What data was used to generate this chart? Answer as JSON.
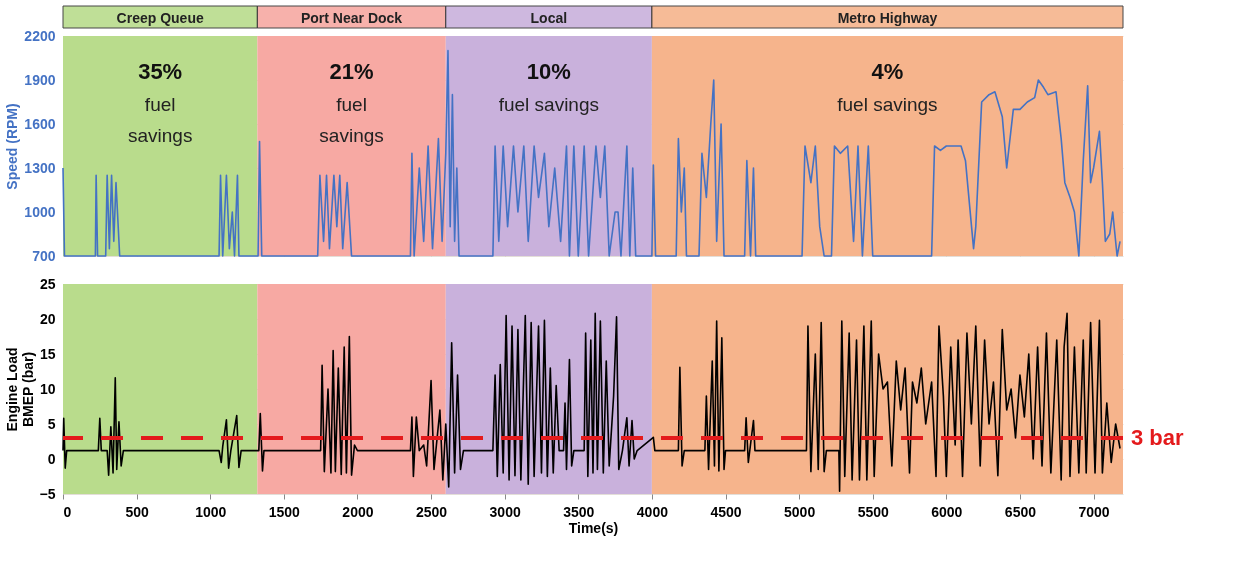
{
  "chart_data": [
    {
      "type": "line",
      "ylabel": "Speed (RPM)",
      "xlim": [
        0,
        7200
      ],
      "xticks": [
        0,
        500,
        1000,
        1500,
        2000,
        2500,
        3000,
        3500,
        4000,
        4500,
        5000,
        5500,
        6000,
        6500,
        7000
      ],
      "ylim": [
        700,
        2200
      ],
      "yticks": [
        700,
        1000,
        1300,
        1600,
        1900,
        2200
      ],
      "tick_labels": "y",
      "grid": true,
      "marker": "none",
      "line_style": "solid",
      "bands": [
        {
          "axis": "x",
          "from": 0,
          "to": 1320,
          "label": "Creep Queue",
          "color": "#b9dc8c"
        },
        {
          "axis": "x",
          "from": 1320,
          "to": 2600,
          "label": "Port Near Dock",
          "color": "#f7a9a3"
        },
        {
          "axis": "x",
          "from": 2600,
          "to": 4000,
          "label": "Local",
          "color": "#c9b1dc"
        },
        {
          "axis": "x",
          "from": 4000,
          "to": 7200,
          "label": "Metro Highway",
          "color": "#f6b48c"
        }
      ],
      "annotations": [
        "35%\nfuel\nsavings",
        "21%\nfuel\nsavings",
        "10%\nfuel savings",
        "4%\nfuel savings"
      ],
      "series": [
        {
          "color": "#4472c4",
          "x": [
            0,
            10,
            220,
            225,
            235,
            290,
            300,
            315,
            330,
            345,
            360,
            385,
            1060,
            1070,
            1085,
            1110,
            1130,
            1150,
            1165,
            1185,
            1195,
            1325,
            1335,
            1350,
            1730,
            1745,
            1770,
            1790,
            1810,
            1840,
            1860,
            1880,
            1900,
            1930,
            1960,
            2360,
            2370,
            2385,
            2420,
            2450,
            2480,
            2510,
            2550,
            2575,
            2600,
            2615,
            2630,
            2645,
            2660,
            2675,
            2690,
            2920,
            2935,
            2960,
            2990,
            3020,
            3060,
            3090,
            3130,
            3160,
            3200,
            3230,
            3270,
            3300,
            3340,
            3380,
            3420,
            3440,
            3470,
            3500,
            3540,
            3570,
            3620,
            3650,
            3680,
            3710,
            3750,
            3770,
            3790,
            3830,
            3850,
            3870,
            3890,
            4000,
            4010,
            4025,
            4165,
            4180,
            4200,
            4220,
            4235,
            4320,
            4340,
            4370,
            4400,
            4420,
            4440,
            4470,
            4490,
            4630,
            4645,
            4670,
            4690,
            4705,
            5020,
            5040,
            5080,
            5110,
            5140,
            5170,
            5220,
            5240,
            5280,
            5330,
            5370,
            5400,
            5430,
            5470,
            5500,
            5900,
            5920,
            5960,
            6000,
            6100,
            6130,
            6185,
            6200,
            6240,
            6290,
            6330,
            6380,
            6410,
            6455,
            6500,
            6550,
            6600,
            6625,
            6660,
            6690,
            6745,
            6780,
            6805,
            6840,
            6870,
            6900,
            6930,
            6960,
            6980,
            7000,
            7040,
            7060,
            7080,
            7110,
            7130,
            7160,
            7180
          ],
          "values": [
            1300,
            700,
            700,
            1250,
            700,
            700,
            1250,
            750,
            1250,
            800,
            1200,
            700,
            700,
            1250,
            700,
            1250,
            750,
            1000,
            700,
            1250,
            700,
            700,
            1480,
            700,
            700,
            1250,
            800,
            1250,
            750,
            1250,
            900,
            1250,
            750,
            1200,
            700,
            700,
            1400,
            700,
            1300,
            800,
            1450,
            750,
            1500,
            800,
            1400,
            2100,
            900,
            1800,
            800,
            1300,
            700,
            700,
            1450,
            800,
            1450,
            900,
            1450,
            1000,
            1450,
            800,
            1450,
            1100,
            1400,
            900,
            1300,
            800,
            1450,
            700,
            1450,
            700,
            1450,
            700,
            1450,
            1100,
            1450,
            700,
            1000,
            1000,
            700,
            1450,
            700,
            1300,
            700,
            700,
            1320,
            700,
            700,
            1500,
            1000,
            1300,
            700,
            700,
            1400,
            1100,
            1600,
            1900,
            800,
            1600,
            700,
            700,
            1350,
            700,
            1300,
            700,
            700,
            1450,
            1200,
            1450,
            900,
            700,
            700,
            1450,
            1400,
            1450,
            800,
            1450,
            700,
            1450,
            700,
            700,
            1450,
            1420,
            1450,
            1450,
            1350,
            750,
            900,
            1750,
            1800,
            1820,
            1650,
            1300,
            1700,
            1700,
            1750,
            1780,
            1900,
            1850,
            1800,
            1820,
            1500,
            1200,
            1100,
            1000,
            700,
            1350,
            1860,
            1200,
            1300,
            1550,
            1200,
            800,
            850,
            1000,
            700,
            800
          ]
        }
      ]
    },
    {
      "type": "line",
      "xlabel": "Time(s)",
      "ylabel": "Engine Load\nBMEP (bar)",
      "xlim": [
        0,
        7200
      ],
      "xticks": [
        0,
        500,
        1000,
        1500,
        2000,
        2500,
        3000,
        3500,
        4000,
        4500,
        5000,
        5500,
        6000,
        6500,
        7000
      ],
      "ylim": [
        -5,
        25
      ],
      "yticks": [
        -5,
        0,
        5,
        10,
        15,
        20,
        25
      ],
      "grid": true,
      "marker": "none",
      "line_style": "solid",
      "bands": [
        {
          "axis": "x",
          "from": 0,
          "to": 1320,
          "color": "#b9dc8c"
        },
        {
          "axis": "x",
          "from": 1320,
          "to": 2600,
          "color": "#f7a9a3"
        },
        {
          "axis": "x",
          "from": 2600,
          "to": 4000,
          "color": "#c9b1dc"
        },
        {
          "axis": "x",
          "from": 4000,
          "to": 7200,
          "color": "#f6b48c"
        }
      ],
      "ref_lines": [
        {
          "axis": "y",
          "value": 3,
          "label": "3 bar",
          "color": "#e41a1c",
          "line_style": "dashed"
        }
      ],
      "series": [
        {
          "color": "#000000",
          "x": [
            0,
            5,
            15,
            25,
            240,
            250,
            260,
            300,
            310,
            325,
            340,
            355,
            365,
            380,
            395,
            410,
            1060,
            1075,
            1085,
            1110,
            1125,
            1140,
            1180,
            1195,
            1210,
            1330,
            1340,
            1355,
            1365,
            1750,
            1760,
            1775,
            1800,
            1820,
            1835,
            1850,
            1870,
            1890,
            1910,
            1925,
            1945,
            1960,
            1980,
            2000,
            2360,
            2370,
            2380,
            2400,
            2420,
            2450,
            2470,
            2500,
            2520,
            2560,
            2580,
            2600,
            2620,
            2640,
            2660,
            2680,
            2700,
            2720,
            2920,
            2935,
            2950,
            2970,
            2990,
            3010,
            3030,
            3050,
            3070,
            3090,
            3110,
            3140,
            3160,
            3180,
            3200,
            3230,
            3250,
            3270,
            3290,
            3310,
            3330,
            3350,
            3370,
            3400,
            3410,
            3420,
            3440,
            3455,
            3470,
            3540,
            3550,
            3565,
            3585,
            3600,
            3615,
            3630,
            3650,
            3670,
            3690,
            3710,
            3740,
            3760,
            3775,
            3800,
            3830,
            3845,
            3865,
            3880,
            3900,
            4010,
            4020,
            4180,
            4190,
            4205,
            4220,
            4360,
            4370,
            4385,
            4410,
            4425,
            4440,
            4455,
            4475,
            4490,
            4500,
            4630,
            4640,
            4655,
            4690,
            4700,
            5050,
            5060,
            5080,
            5110,
            5130,
            5150,
            5170,
            5185,
            5270,
            5275,
            5290,
            5310,
            5340,
            5360,
            5390,
            5410,
            5440,
            5460,
            5490,
            5510,
            5540,
            5570,
            5600,
            5630,
            5660,
            5690,
            5720,
            5750,
            5770,
            5800,
            5830,
            5860,
            5900,
            5930,
            5950,
            5980,
            6000,
            6030,
            6060,
            6080,
            6110,
            6140,
            6170,
            6200,
            6230,
            6260,
            6290,
            6320,
            6350,
            6380,
            6410,
            6440,
            6470,
            6500,
            6530,
            6560,
            6590,
            6620,
            6650,
            6680,
            6710,
            6750,
            6780,
            6800,
            6820,
            6840,
            6870,
            6900,
            6930,
            6950,
            6980,
            7010,
            7040,
            7060,
            7090,
            7120,
            7150,
            7180
          ],
          "values": [
            1.2,
            5.8,
            -1.3,
            1.2,
            1.2,
            5.8,
            1.2,
            1.2,
            -2.3,
            4.6,
            -2,
            11.6,
            -1.5,
            5.3,
            -1,
            1.2,
            1.2,
            -0.5,
            1.8,
            5.6,
            -1.3,
            1.2,
            6.2,
            -1.2,
            1.2,
            1.2,
            6.5,
            -1.7,
            1.2,
            1.2,
            13.4,
            -1.8,
            10,
            -2,
            15.5,
            -1.8,
            13,
            -2.2,
            16,
            -2,
            17.5,
            -2.3,
            2,
            1.2,
            1.2,
            6,
            -2.5,
            6,
            1.2,
            2,
            -1,
            11.2,
            -1.5,
            7,
            -3,
            5,
            -4,
            16.6,
            -2,
            12,
            -1.5,
            1.2,
            1.2,
            12,
            -2.5,
            13.5,
            -2,
            20.5,
            -3,
            19,
            -2.4,
            18.5,
            -3,
            20.5,
            -3.6,
            19.5,
            -2.5,
            19,
            -2,
            19.8,
            -2.5,
            13,
            -2,
            10.5,
            1.2,
            1.2,
            8,
            -1.5,
            14.2,
            -1,
            1.2,
            1.2,
            18,
            -2.5,
            17,
            -2,
            20.8,
            -1.5,
            19.7,
            -2,
            14,
            -1,
            9,
            20.3,
            -1.5,
            1.2,
            5.9,
            -1,
            5.5,
            0,
            1.2,
            3.1,
            1.2,
            1.2,
            13.1,
            -1,
            1.2,
            1.2,
            9,
            -1.5,
            14,
            -1,
            19.7,
            -1.7,
            17.3,
            -1.5,
            1.2,
            1.2,
            5.9,
            -0.5,
            5.5,
            1.2,
            1.2,
            19,
            -1.8,
            15,
            -1.5,
            19.5,
            -1.8,
            1.2,
            1.2,
            -4.6,
            19.7,
            -2.5,
            18,
            -3,
            17,
            -3,
            19,
            -3,
            19.7,
            -2.5,
            15,
            10,
            11,
            -1,
            14,
            7,
            13,
            -2,
            11,
            8,
            13,
            5,
            11,
            -2.5,
            19,
            9,
            -2.5,
            16,
            2,
            17,
            -2.5,
            18,
            5,
            19,
            -1,
            17,
            5,
            11,
            -2.4,
            18.5,
            7,
            10,
            3,
            12,
            6,
            15,
            0,
            16,
            -1,
            18,
            -2,
            17,
            -3,
            16,
            20.8,
            -2.5,
            16,
            -2,
            17,
            -2,
            19.5,
            -2,
            19.8,
            -2,
            8,
            -0.5,
            5,
            1.5
          ]
        }
      ]
    }
  ]
}
